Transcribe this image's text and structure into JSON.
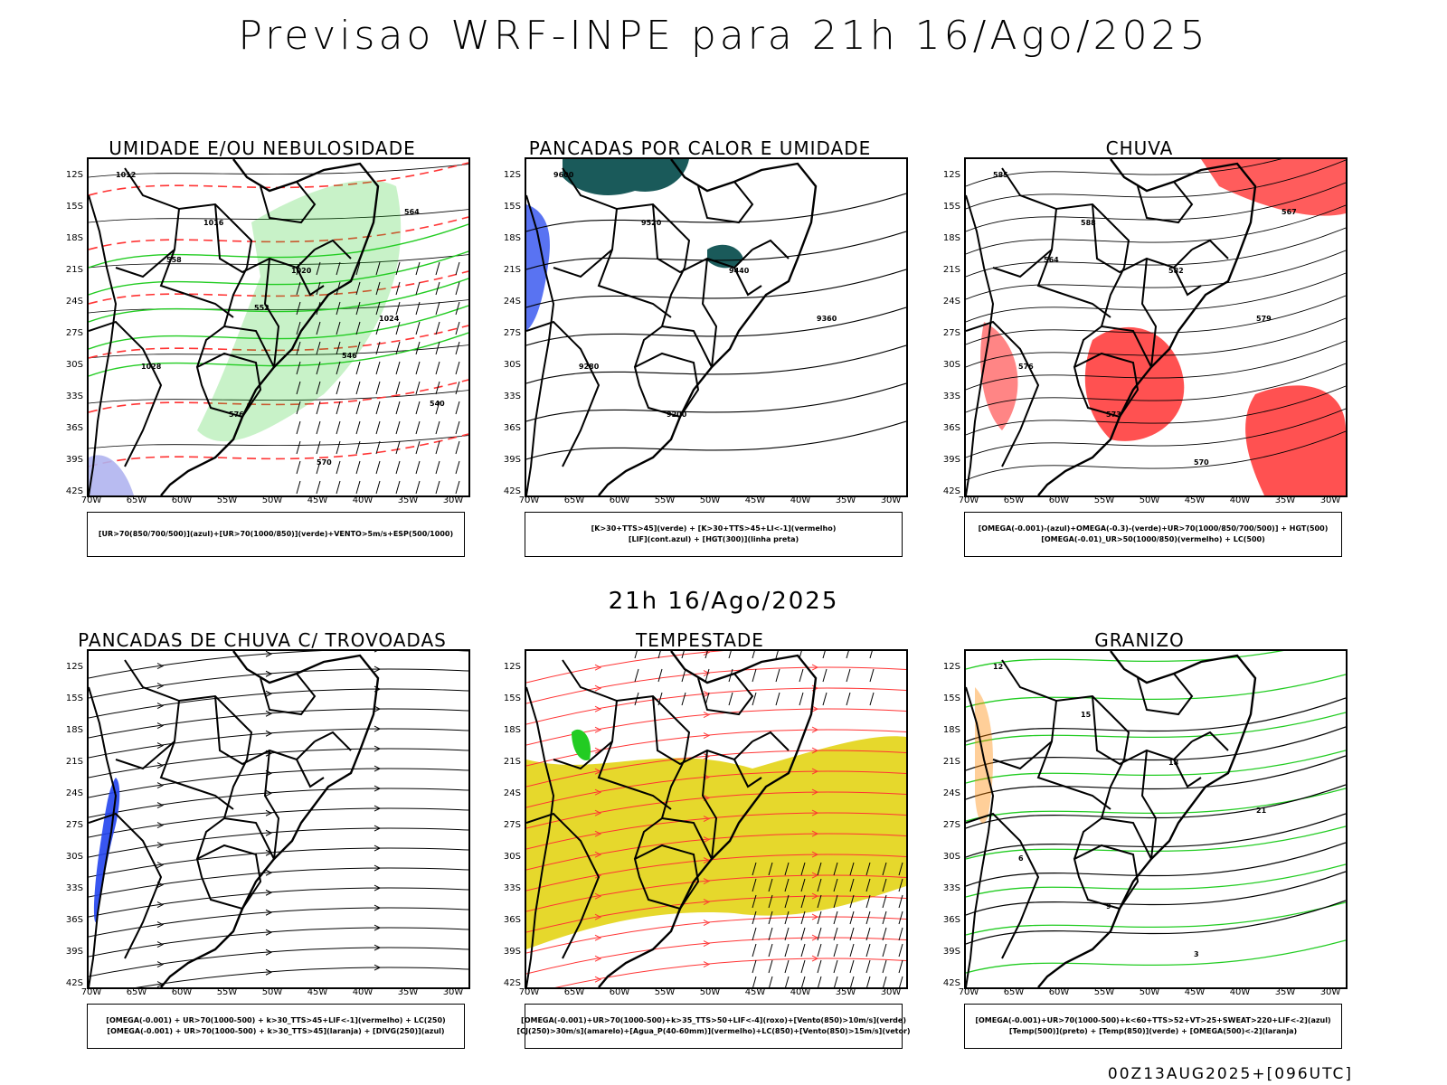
{
  "header": {
    "title": "Previsao WRF-INPE  para 21h 16/Ago/2025",
    "mid_title": "21h 16/Ago/2025",
    "footer": "00Z13AUG2025+[096UTC]"
  },
  "axes": {
    "lat_labels": [
      "12S",
      "15S",
      "18S",
      "21S",
      "24S",
      "27S",
      "30S",
      "33S",
      "36S",
      "39S",
      "42S"
    ],
    "lon_labels": [
      "70W",
      "65W",
      "60W",
      "55W",
      "50W",
      "45W",
      "40W",
      "35W",
      "30W"
    ]
  },
  "colors": {
    "green": "#22cc22",
    "red": "#ff3333",
    "blue": "#2244ee",
    "yellow": "#e6d82c",
    "teal": "#1a5a5a",
    "lavender": "#b0b4f0",
    "orange": "#ff8800"
  },
  "panels": [
    {
      "title": "UMIDADE E/OU NEBULOSIDADE",
      "legend": [
        "[UR>70(850/700/500)](azul)+[UR>70(1000/850)](verde)+VENTO>5m/s+ESP(500/1000)"
      ],
      "contour_labels": [
        "1012",
        "1016",
        "1020",
        "1024",
        "1028",
        "576",
        "570",
        "564",
        "558",
        "552",
        "546",
        "540"
      ]
    },
    {
      "title": "PANCADAS POR CALOR E UMIDADE",
      "legend": [
        "[K>30+TTS>45](verde) + [K>30+TTS>45+LI<-1](vermelho)",
        "[LIF](cont.azul) + [HGT(300)](linha preta)"
      ],
      "contour_labels": [
        "9600",
        "9520",
        "9440",
        "9360",
        "9280",
        "9200"
      ]
    },
    {
      "title": "CHUVA",
      "legend": [
        "[OMEGA(-0.001)-(azul)+OMEGA(-0.3)-(verde)+UR>70(1000/850/700/500)] + HGT(500)",
        "[OMEGA(-0.01)_UR>50(1000/850)(vermelho) + LC(500)"
      ],
      "contour_labels": [
        "585",
        "588",
        "582",
        "579",
        "576",
        "573",
        "570",
        "567",
        "564"
      ]
    },
    {
      "title": "PANCADAS DE CHUVA C/ TROVOADAS",
      "legend": [
        "[OMEGA(-0.001) + UR>70(1000-500) + k>30_TTS>45+LIF<-1](vermelho) + LC(250)",
        "[OMEGA(-0.001) + UR>70(1000-500) + k>30_TTS>45](laranja) + [DIVG(250)](azul)"
      ],
      "contour_labels": []
    },
    {
      "title": "TEMPESTADE",
      "legend": [
        "[OMEGA(-0.001)+UR>70(1000-500)+k>35_TTS>50+LIF<-4](roxo)+[Vento(850)>10m/s](verde)",
        "[CJ(250)>30m/s](amarelo)+[Agua_P(40-60mm)](vermelho)+LC(850)+[Vento(850)>15m/s](vetor)"
      ],
      "contour_labels": []
    },
    {
      "title": "GRANIZO",
      "legend": [
        "[OMEGA(-0.001)+UR>70(1000-500)+k<60+TTS>52+VT>25+SWEAT>220+LIF<-2](azul)",
        "[Temp(500)](preto) + [Temp(850)](verde) + [OMEGA(500)<-2](laranja)"
      ],
      "contour_labels": [
        "12",
        "15",
        "18",
        "21",
        "6",
        "9",
        "3"
      ]
    }
  ]
}
